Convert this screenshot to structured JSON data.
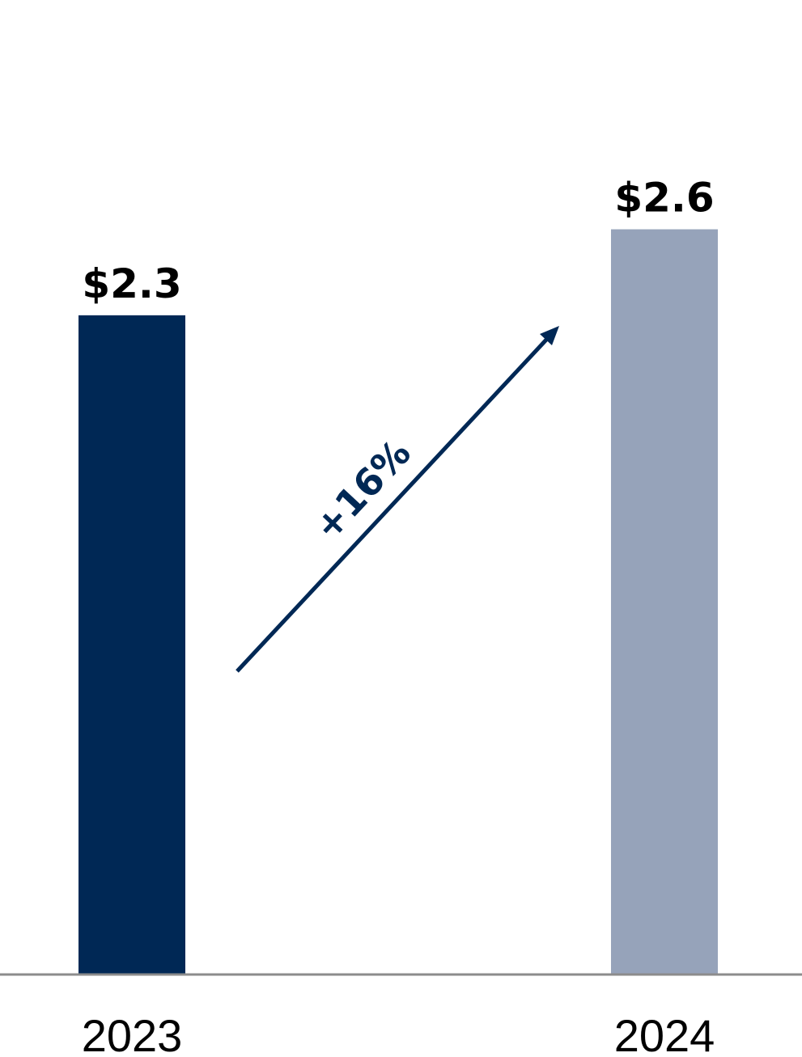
{
  "chart_data": {
    "type": "bar",
    "categories": [
      "2023",
      "2024"
    ],
    "values": [
      2.3,
      2.6
    ],
    "value_labels": [
      "$2.3",
      "$2.6"
    ],
    "colors": [
      "#002855",
      "#96a3ba"
    ],
    "ylim": [
      0,
      3.4
    ],
    "annotation": "+16%"
  }
}
